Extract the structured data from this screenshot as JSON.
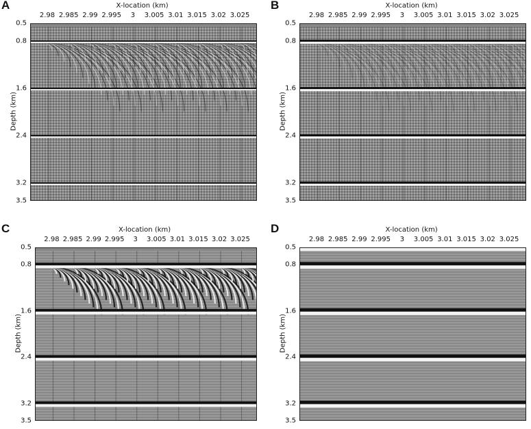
{
  "figure": {
    "panels": [
      {
        "letter": "A",
        "style": "dense"
      },
      {
        "letter": "B",
        "style": "banded"
      },
      {
        "letter": "C",
        "style": "coarse"
      },
      {
        "letter": "D",
        "style": "clean"
      }
    ],
    "x_axis_title": "X-location (km)",
    "y_axis_title": "Depth (km)",
    "x_ticks": [
      "2.98",
      "2.985",
      "2.99",
      "2.995",
      "3",
      "3.005",
      "3.01",
      "3.015",
      "3.02",
      "3.025"
    ],
    "y_ticks": [
      "0.5",
      "0.8",
      "1.6",
      "2.4",
      "3.2",
      "3.5"
    ],
    "x_range": [
      2.976,
      3.029
    ],
    "y_range": [
      0.5,
      3.5
    ],
    "reflector_depths": [
      0.8,
      1.6,
      2.4,
      3.2
    ],
    "colors": {
      "background": "#888888",
      "light": "#f4f4f4",
      "dark": "#111111"
    }
  }
}
